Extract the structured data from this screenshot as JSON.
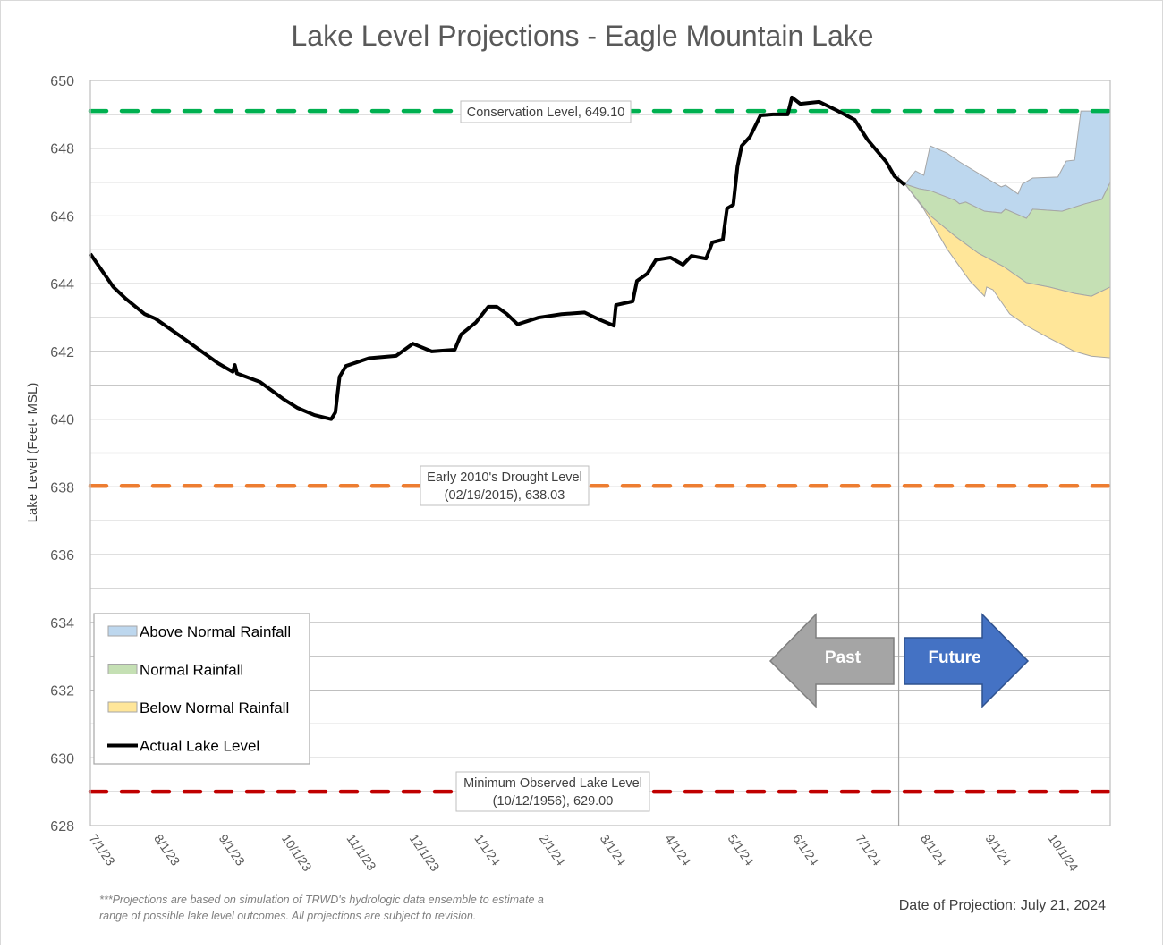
{
  "chart_data": {
    "type": "area",
    "title": "Lake Level Projections - Eagle Mountain Lake",
    "ylabel": "Lake Level (Feet- MSL)",
    "xlabel": "",
    "ylim": [
      628,
      650
    ],
    "xlim": [
      "2023-07-01",
      "2024-10-30"
    ],
    "y_ticks": [
      628,
      630,
      632,
      634,
      636,
      638,
      640,
      642,
      644,
      646,
      648,
      650
    ],
    "x_ticks": [
      {
        "date": "2023-07-01",
        "label": "7/1/23"
      },
      {
        "date": "2023-08-01",
        "label": "8/1/23"
      },
      {
        "date": "2023-09-01",
        "label": "9/1/23"
      },
      {
        "date": "2023-10-01",
        "label": "10/1/23"
      },
      {
        "date": "2023-11-01",
        "label": "11/1/23"
      },
      {
        "date": "2023-12-01",
        "label": "12/1/23"
      },
      {
        "date": "2024-01-01",
        "label": "1/1/24"
      },
      {
        "date": "2024-02-01",
        "label": "2/1/24"
      },
      {
        "date": "2024-03-01",
        "label": "3/1/24"
      },
      {
        "date": "2024-04-01",
        "label": "4/1/24"
      },
      {
        "date": "2024-05-01",
        "label": "5/1/24"
      },
      {
        "date": "2024-06-01",
        "label": "6/1/24"
      },
      {
        "date": "2024-07-01",
        "label": "7/1/24"
      },
      {
        "date": "2024-08-01",
        "label": "8/1/24"
      },
      {
        "date": "2024-09-01",
        "label": "9/1/24"
      },
      {
        "date": "2024-10-01",
        "label": "10/1/24"
      }
    ],
    "grid": "horizontal every 1 ft",
    "projection_date": "2024-07-21",
    "reference_lines": [
      {
        "value": 649.1,
        "label": "Conservation Level, 649.10",
        "color": "#00b050"
      },
      {
        "value": 638.03,
        "label": "Early 2010's Drought Level",
        "label2": "(02/19/2015), 638.03",
        "color": "#ed7d31"
      },
      {
        "value": 629.0,
        "label": "Minimum Observed Lake Level",
        "label2": "(10/12/1956), 629.00",
        "color": "#c00000"
      }
    ],
    "series": [
      {
        "name": "Above Normal Rainfall",
        "color": "#bdd7ee",
        "upper": [
          [
            "2024-07-24",
            646.94
          ],
          [
            "2024-07-29",
            647.33
          ],
          [
            "2024-08-02",
            647.2
          ],
          [
            "2024-08-05",
            648.07
          ],
          [
            "2024-08-13",
            647.86
          ],
          [
            "2024-08-19",
            647.6
          ],
          [
            "2024-08-31",
            647.15
          ],
          [
            "2024-09-08",
            646.86
          ],
          [
            "2024-09-10",
            646.91
          ],
          [
            "2024-09-16",
            646.65
          ],
          [
            "2024-09-18",
            646.94
          ],
          [
            "2024-09-23",
            647.12
          ],
          [
            "2024-10-05",
            647.15
          ],
          [
            "2024-10-09",
            647.62
          ],
          [
            "2024-10-13",
            647.65
          ],
          [
            "2024-10-16",
            649.1
          ],
          [
            "2024-10-30",
            649.1
          ]
        ],
        "lower": [
          [
            "2024-07-24",
            646.94
          ],
          [
            "2024-07-31",
            646.8
          ],
          [
            "2024-08-05",
            646.75
          ],
          [
            "2024-08-17",
            646.46
          ],
          [
            "2024-08-19",
            646.36
          ],
          [
            "2024-08-22",
            646.41
          ],
          [
            "2024-08-31",
            646.14
          ],
          [
            "2024-09-08",
            646.09
          ],
          [
            "2024-09-10",
            646.2
          ],
          [
            "2024-09-20",
            645.93
          ],
          [
            "2024-09-23",
            646.2
          ],
          [
            "2024-10-07",
            646.14
          ],
          [
            "2024-10-18",
            646.36
          ],
          [
            "2024-10-26",
            646.49
          ],
          [
            "2024-10-30",
            646.99
          ]
        ]
      },
      {
        "name": "Normal Rainfall",
        "color": "#c5e0b4",
        "upper": [
          [
            "2024-07-24",
            646.94
          ],
          [
            "2024-07-31",
            646.8
          ],
          [
            "2024-08-05",
            646.75
          ],
          [
            "2024-08-17",
            646.46
          ],
          [
            "2024-08-19",
            646.36
          ],
          [
            "2024-08-22",
            646.41
          ],
          [
            "2024-08-31",
            646.14
          ],
          [
            "2024-09-08",
            646.09
          ],
          [
            "2024-09-10",
            646.2
          ],
          [
            "2024-09-20",
            645.93
          ],
          [
            "2024-09-23",
            646.2
          ],
          [
            "2024-10-07",
            646.14
          ],
          [
            "2024-10-18",
            646.36
          ],
          [
            "2024-10-26",
            646.49
          ],
          [
            "2024-10-30",
            646.99
          ]
        ],
        "lower": [
          [
            "2024-07-24",
            646.94
          ],
          [
            "2024-08-05",
            646.01
          ],
          [
            "2024-08-17",
            645.4
          ],
          [
            "2024-08-28",
            644.9
          ],
          [
            "2024-09-09",
            644.51
          ],
          [
            "2024-09-20",
            644.03
          ],
          [
            "2024-10-01",
            643.9
          ],
          [
            "2024-10-13",
            643.71
          ],
          [
            "2024-10-21",
            643.63
          ],
          [
            "2024-10-30",
            643.9
          ]
        ]
      },
      {
        "name": "Below Normal Rainfall",
        "color": "#ffe699",
        "upper": [
          [
            "2024-07-24",
            646.94
          ],
          [
            "2024-08-05",
            646.01
          ],
          [
            "2024-08-17",
            645.4
          ],
          [
            "2024-08-28",
            644.9
          ],
          [
            "2024-09-09",
            644.51
          ],
          [
            "2024-09-20",
            644.03
          ],
          [
            "2024-10-01",
            643.9
          ],
          [
            "2024-10-13",
            643.71
          ],
          [
            "2024-10-21",
            643.63
          ],
          [
            "2024-10-30",
            643.9
          ]
        ],
        "lower": [
          [
            "2024-07-24",
            646.94
          ],
          [
            "2024-08-02",
            646.2
          ],
          [
            "2024-08-13",
            645.03
          ],
          [
            "2024-08-24",
            644.08
          ],
          [
            "2024-08-31",
            643.63
          ],
          [
            "2024-09-01",
            643.9
          ],
          [
            "2024-09-04",
            643.82
          ],
          [
            "2024-09-12",
            643.11
          ],
          [
            "2024-09-20",
            642.76
          ],
          [
            "2024-10-01",
            642.39
          ],
          [
            "2024-10-13",
            642.0
          ],
          [
            "2024-10-21",
            641.86
          ],
          [
            "2024-10-30",
            641.81
          ]
        ]
      },
      {
        "name": "Actual Lake Level",
        "color": "#000000",
        "points": [
          [
            "2023-07-01",
            644.88
          ],
          [
            "2023-07-12",
            643.9
          ],
          [
            "2023-07-18",
            643.55
          ],
          [
            "2023-07-27",
            643.1
          ],
          [
            "2023-08-01",
            642.97
          ],
          [
            "2023-08-13",
            642.45
          ],
          [
            "2023-08-31",
            641.65
          ],
          [
            "2023-09-07",
            641.4
          ],
          [
            "2023-09-08",
            641.6
          ],
          [
            "2023-09-09",
            641.35
          ],
          [
            "2023-09-20",
            641.1
          ],
          [
            "2023-10-01",
            640.6
          ],
          [
            "2023-10-08",
            640.33
          ],
          [
            "2023-10-16",
            640.12
          ],
          [
            "2023-10-24",
            640.0
          ],
          [
            "2023-10-26",
            640.2
          ],
          [
            "2023-10-28",
            641.25
          ],
          [
            "2023-10-31",
            641.57
          ],
          [
            "2023-11-11",
            641.8
          ],
          [
            "2023-11-24",
            641.87
          ],
          [
            "2023-12-02",
            642.23
          ],
          [
            "2023-12-11",
            642.0
          ],
          [
            "2023-12-22",
            642.05
          ],
          [
            "2023-12-25",
            642.5
          ],
          [
            "2024-01-01",
            642.85
          ],
          [
            "2024-01-07",
            643.32
          ],
          [
            "2024-01-11",
            643.32
          ],
          [
            "2024-01-16",
            643.1
          ],
          [
            "2024-01-21",
            642.8
          ],
          [
            "2024-01-31",
            643.0
          ],
          [
            "2024-02-11",
            643.1
          ],
          [
            "2024-02-22",
            643.15
          ],
          [
            "2024-02-28",
            642.97
          ],
          [
            "2024-03-07",
            642.76
          ],
          [
            "2024-03-08",
            643.37
          ],
          [
            "2024-03-16",
            643.48
          ],
          [
            "2024-03-18",
            644.08
          ],
          [
            "2024-03-23",
            644.3
          ],
          [
            "2024-03-27",
            644.7
          ],
          [
            "2024-04-03",
            644.77
          ],
          [
            "2024-04-09",
            644.56
          ],
          [
            "2024-04-13",
            644.82
          ],
          [
            "2024-04-20",
            644.74
          ],
          [
            "2024-04-23",
            645.22
          ],
          [
            "2024-04-28",
            645.3
          ],
          [
            "2024-04-30",
            646.22
          ],
          [
            "2024-05-03",
            646.33
          ],
          [
            "2024-05-05",
            647.46
          ],
          [
            "2024-05-07",
            648.07
          ],
          [
            "2024-05-11",
            648.34
          ],
          [
            "2024-05-16",
            648.97
          ],
          [
            "2024-05-22",
            649.0
          ],
          [
            "2024-05-29",
            649.0
          ],
          [
            "2024-05-31",
            649.5
          ],
          [
            "2024-06-04",
            649.31
          ],
          [
            "2024-06-13",
            649.37
          ],
          [
            "2024-06-21",
            649.13
          ],
          [
            "2024-06-30",
            648.84
          ],
          [
            "2024-07-06",
            648.26
          ],
          [
            "2024-07-15",
            647.6
          ],
          [
            "2024-07-19",
            647.17
          ],
          [
            "2024-07-24",
            646.91
          ]
        ]
      }
    ],
    "legend_placement": "bottom-left",
    "arrows": [
      {
        "label": "Past",
        "color": "#a5a5a5"
      },
      {
        "label": "Future",
        "color": "#4472c4"
      }
    ],
    "footnote_line1": "***Projections are based on simulation of TRWD's hydrologic data ensemble to estimate a",
    "footnote_line2": "range of possible lake level outcomes.  All projections are subject to revision.",
    "projection_note": "Date of Projection: July 21, 2024"
  }
}
